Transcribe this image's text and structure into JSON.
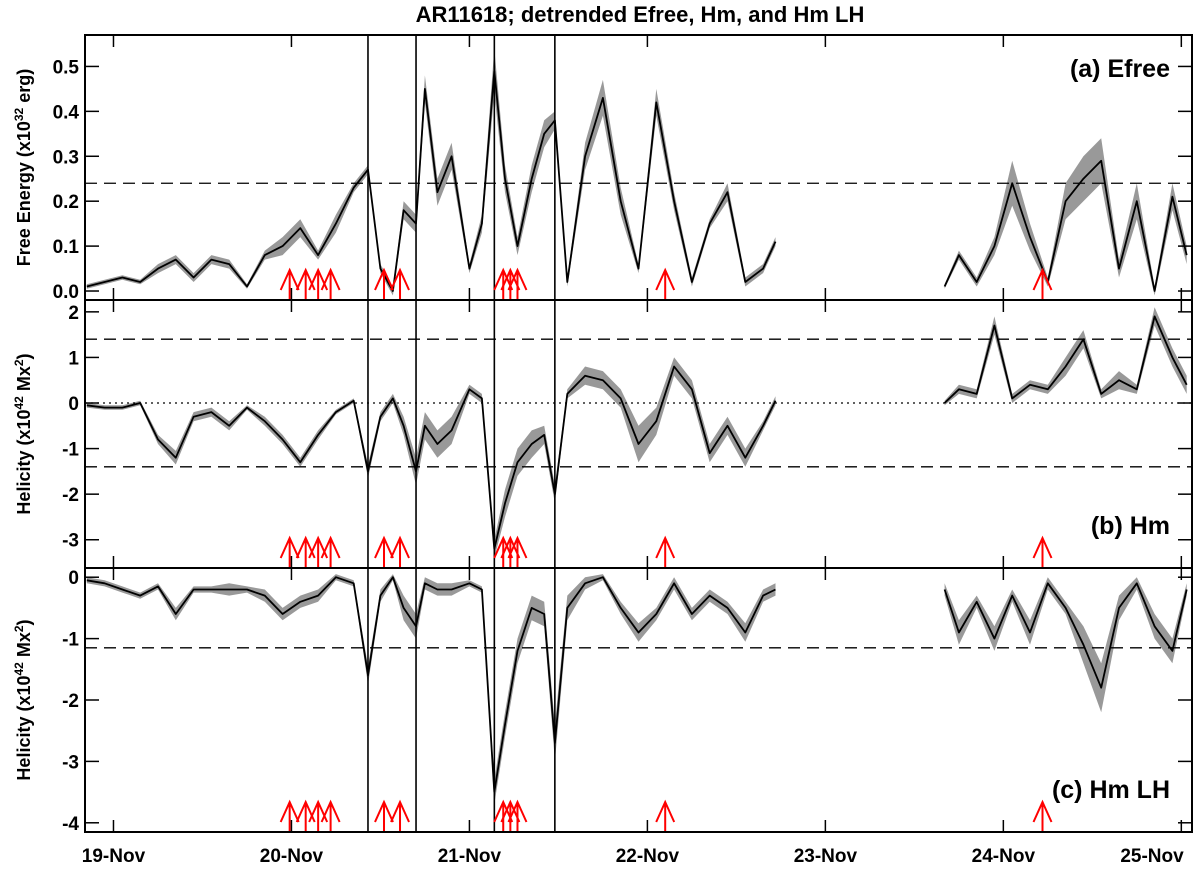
{
  "title": "AR11618; detrended Efree, Hm, and Hm LH",
  "x_axis": {
    "xlim": [
      -0.16,
      6.06
    ],
    "xticks": [
      {
        "value": 0,
        "label": "19-Nov"
      },
      {
        "value": 1,
        "label": "20-Nov"
      },
      {
        "value": 2,
        "label": "21-Nov"
      },
      {
        "value": 3,
        "label": "22-Nov"
      },
      {
        "value": 4,
        "label": "23-Nov"
      },
      {
        "value": 5,
        "label": "24-Nov"
      },
      {
        "value": 6,
        "label": "25-Nov"
      }
    ],
    "x": [
      -0.15,
      -0.05,
      0.05,
      0.15,
      0.25,
      0.35,
      0.45,
      0.55,
      0.65,
      0.75,
      0.85,
      0.95,
      1.05,
      1.15,
      1.25,
      1.35,
      1.43,
      1.5,
      1.57,
      1.63,
      1.7,
      1.75,
      1.82,
      1.9,
      2.0,
      2.07,
      2.14,
      2.2,
      2.27,
      2.35,
      2.42,
      2.48,
      2.55,
      2.65,
      2.75,
      2.85,
      2.95,
      3.05,
      3.15,
      3.25,
      3.35,
      3.45,
      3.55,
      3.65,
      3.72,
      3.8,
      4.67,
      4.75,
      4.85,
      4.95,
      5.05,
      5.15,
      5.25,
      5.35,
      5.45,
      5.55,
      5.65,
      5.75,
      5.85,
      5.95,
      6.03
    ]
  },
  "events": {
    "vlines": [
      1.43,
      1.7,
      2.14,
      2.48
    ],
    "vline_color": "#000000",
    "flares": [
      0.99,
      1.08,
      1.15,
      1.22,
      1.52,
      1.61,
      2.19,
      2.23,
      2.27,
      3.1,
      5.22
    ],
    "flare_color": "#ff0000"
  },
  "chart_data": [
    {
      "type": "line",
      "label": "(a) Efree",
      "label_corner": "upper right",
      "ylabel": [
        "Free Energy (x10",
        "32",
        " erg)"
      ],
      "ylim": [
        -0.02,
        0.57
      ],
      "yticks": [
        {
          "value": 0,
          "label": "0.0"
        },
        0.1,
        0.2,
        0.3,
        0.4,
        0.5
      ],
      "hlines": [
        {
          "value": 0.24,
          "style": "dashed"
        }
      ],
      "series": [
        {
          "color": "#000000",
          "band_color": "#999999",
          "values": [
            0.01,
            0.02,
            0.03,
            0.02,
            0.05,
            0.07,
            0.03,
            0.07,
            0.06,
            0.01,
            0.08,
            0.1,
            0.14,
            0.08,
            0.15,
            0.23,
            0.27,
            0.05,
            0.0,
            0.18,
            0.15,
            0.45,
            0.22,
            0.3,
            0.05,
            0.15,
            0.49,
            0.25,
            0.1,
            0.25,
            0.35,
            0.38,
            0.02,
            0.3,
            0.43,
            0.2,
            0.05,
            0.42,
            0.2,
            0.02,
            0.15,
            0.22,
            0.02,
            0.05,
            0.11,
            null,
            0.01,
            0.08,
            0.02,
            0.1,
            0.24,
            0.12,
            0.02,
            0.2,
            0.25,
            0.29,
            0.05,
            0.2,
            0.0,
            0.21,
            0.08
          ],
          "errors": [
            0.005,
            0.005,
            0.005,
            0.005,
            0.01,
            0.01,
            0.01,
            0.01,
            0.01,
            0.005,
            0.01,
            0.02,
            0.02,
            0.01,
            0.02,
            0.01,
            0.01,
            0.01,
            0.01,
            0.02,
            0.02,
            0.03,
            0.03,
            0.03,
            0.01,
            0.02,
            0.05,
            0.03,
            0.02,
            0.03,
            0.03,
            0.02,
            0.01,
            0.03,
            0.04,
            0.03,
            0.01,
            0.03,
            0.02,
            0.01,
            0.01,
            0.02,
            0.01,
            0.01,
            0.01,
            null,
            0.005,
            0.01,
            0.01,
            0.02,
            0.05,
            0.03,
            0.01,
            0.04,
            0.05,
            0.05,
            0.02,
            0.04,
            0.01,
            0.03,
            0.02
          ]
        }
      ]
    },
    {
      "type": "line",
      "label": "(b) Hm",
      "label_corner": "lower right",
      "ylabel": [
        "Helicity (x10",
        "42",
        " Mx",
        "2",
        ")"
      ],
      "ylim": [
        -3.62,
        2.26
      ],
      "yticks": [
        -3,
        -2,
        -1,
        0,
        1,
        2
      ],
      "hlines": [
        {
          "value": 1.4,
          "style": "dashed"
        },
        {
          "value": -1.4,
          "style": "dashed"
        },
        {
          "value": 0,
          "style": "dotted"
        }
      ],
      "series": [
        {
          "color": "#000000",
          "band_color": "#999999",
          "values": [
            -0.05,
            -0.1,
            -0.1,
            0.0,
            -0.8,
            -1.2,
            -0.3,
            -0.2,
            -0.5,
            -0.1,
            -0.4,
            -0.8,
            -1.3,
            -0.7,
            -0.2,
            0.05,
            -1.5,
            -0.3,
            0.1,
            -0.5,
            -1.5,
            -0.5,
            -0.9,
            -0.6,
            0.3,
            0.1,
            -3.2,
            -2.2,
            -1.3,
            -0.9,
            -0.7,
            -2.0,
            0.2,
            0.6,
            0.5,
            0.1,
            -0.9,
            -0.4,
            0.8,
            0.3,
            -1.1,
            -0.5,
            -1.2,
            -0.5,
            0.05,
            null,
            0.0,
            0.3,
            0.2,
            1.7,
            0.1,
            0.4,
            0.3,
            0.8,
            1.4,
            0.2,
            0.5,
            0.3,
            1.9,
            1.0,
            0.4
          ],
          "errors": [
            0.05,
            0.05,
            0.05,
            0.05,
            0.1,
            0.15,
            0.1,
            0.1,
            0.1,
            0.05,
            0.1,
            0.1,
            0.1,
            0.1,
            0.05,
            0.05,
            0.15,
            0.1,
            0.1,
            0.2,
            0.3,
            0.3,
            0.3,
            0.3,
            0.1,
            0.1,
            0.2,
            0.3,
            0.3,
            0.3,
            0.2,
            0.2,
            0.1,
            0.2,
            0.2,
            0.2,
            0.4,
            0.3,
            0.2,
            0.2,
            0.2,
            0.2,
            0.2,
            0.1,
            0.1,
            null,
            0.05,
            0.1,
            0.1,
            0.2,
            0.1,
            0.1,
            0.1,
            0.2,
            0.2,
            0.1,
            0.2,
            0.1,
            0.2,
            0.2,
            0.2
          ]
        }
      ]
    },
    {
      "type": "line",
      "label": "(c) Hm LH",
      "label_corner": "lower right",
      "ylabel": [
        "Helicity (x10",
        "42",
        " Mx",
        "2",
        ")"
      ],
      "ylim": [
        -4.15,
        0.15
      ],
      "yticks": [
        -4,
        -3,
        -2,
        -1,
        0
      ],
      "hlines": [
        {
          "value": -1.15,
          "style": "dashed"
        }
      ],
      "series": [
        {
          "color": "#000000",
          "band_color": "#999999",
          "values": [
            -0.05,
            -0.1,
            -0.2,
            -0.3,
            -0.15,
            -0.6,
            -0.2,
            -0.2,
            -0.2,
            -0.2,
            -0.3,
            -0.6,
            -0.4,
            -0.3,
            0.0,
            -0.1,
            -1.6,
            -0.3,
            0.0,
            -0.5,
            -0.8,
            -0.1,
            -0.2,
            -0.2,
            -0.1,
            -0.2,
            -3.5,
            -2.4,
            -1.2,
            -0.5,
            -0.6,
            -2.7,
            -0.5,
            -0.1,
            0.0,
            -0.5,
            -0.9,
            -0.6,
            -0.1,
            -0.6,
            -0.3,
            -0.5,
            -0.9,
            -0.3,
            -0.2,
            null,
            -0.2,
            -0.9,
            -0.4,
            -1.0,
            -0.3,
            -0.9,
            -0.1,
            -0.5,
            -1.1,
            -1.8,
            -0.5,
            -0.1,
            -0.8,
            -1.2,
            -0.2
          ],
          "errors": [
            0.05,
            0.05,
            0.05,
            0.05,
            0.05,
            0.1,
            0.05,
            0.05,
            0.1,
            0.05,
            0.1,
            0.1,
            0.1,
            0.1,
            0.05,
            0.05,
            0.15,
            0.1,
            0.05,
            0.2,
            0.2,
            0.1,
            0.1,
            0.1,
            0.05,
            0.05,
            0.2,
            0.2,
            0.2,
            0.2,
            0.2,
            0.3,
            0.2,
            0.1,
            0.05,
            0.1,
            0.15,
            0.1,
            0.1,
            0.1,
            0.1,
            0.1,
            0.15,
            0.1,
            0.1,
            null,
            0.1,
            0.2,
            0.1,
            0.2,
            0.1,
            0.2,
            0.1,
            0.1,
            0.3,
            0.4,
            0.2,
            0.1,
            0.2,
            0.2,
            0.1
          ]
        }
      ]
    }
  ]
}
